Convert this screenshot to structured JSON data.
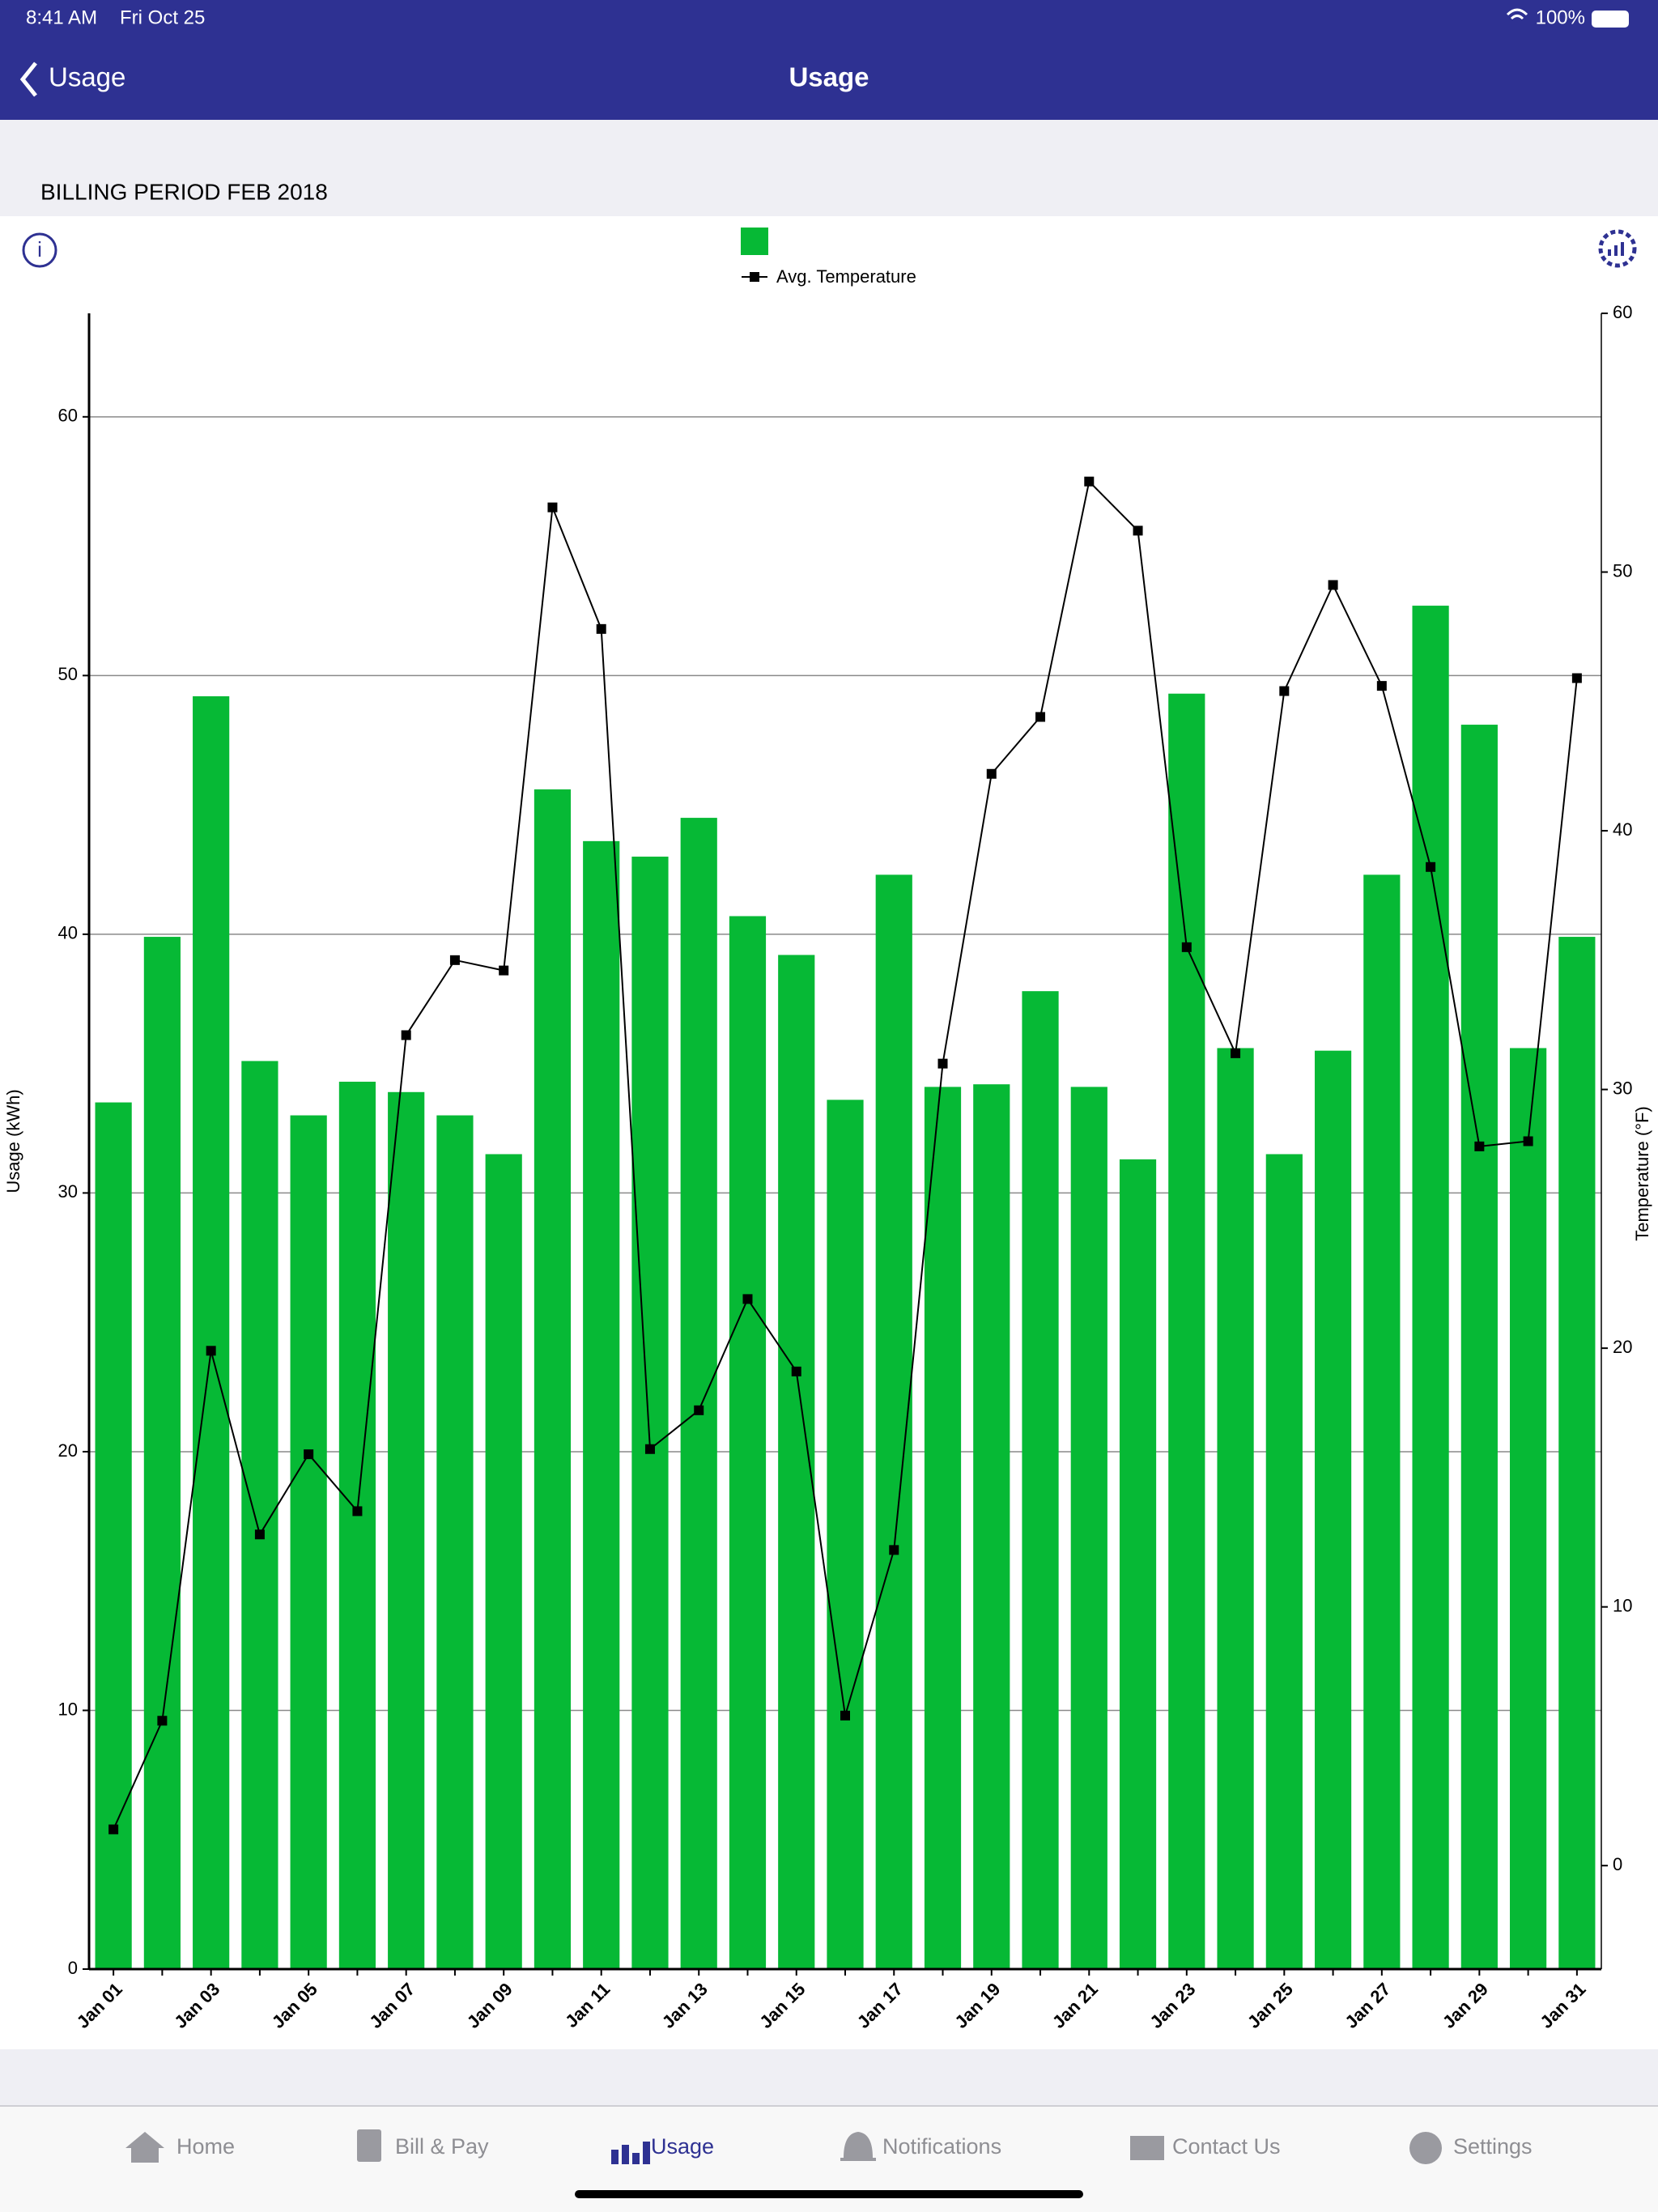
{
  "status_bar": {
    "time": "8:41 AM",
    "date": "Fri Oct 25",
    "battery": "100%"
  },
  "nav": {
    "back": "Usage",
    "title": "Usage"
  },
  "section_title": "BILLING PERIOD FEB 2018",
  "tabs": [
    "Home",
    "Bill & Pay",
    "Usage",
    "Notifications",
    "Contact Us",
    "Settings"
  ],
  "chart_data": {
    "type": "bar",
    "y_label": "Usage (kWh)",
    "y2_label": "Temperature (°F)",
    "categories": [
      "Jan 01",
      null,
      "Jan 03",
      null,
      "Jan 05",
      null,
      "Jan 07",
      null,
      "Jan 09",
      null,
      "Jan 11",
      null,
      "Jan 13",
      null,
      "Jan 15",
      null,
      "Jan 17",
      null,
      "Jan 19",
      null,
      "Jan 21",
      null,
      "Jan 23",
      null,
      "Jan 25",
      null,
      "Jan 27",
      null,
      "Jan 29",
      null,
      "Jan 31"
    ],
    "series": [
      {
        "type": "bar",
        "color": "#06b935",
        "values": [
          33.5,
          39.9,
          49.2,
          35.1,
          33.0,
          34.3,
          33.9,
          33.0,
          31.5,
          45.6,
          43.6,
          43.0,
          44.5,
          40.7,
          39.2,
          33.6,
          42.3,
          34.1,
          34.2,
          37.8,
          34.1,
          31.3,
          49.3,
          35.6,
          31.5,
          35.5,
          42.3,
          52.7,
          48.1,
          35.6,
          39.9
        ]
      },
      {
        "type": "line",
        "name": "Avg. Temperature",
        "color": "#000000",
        "axis": "y2",
        "values": [
          1.4,
          5.6,
          19.9,
          12.8,
          15.9,
          13.7,
          32.1,
          35.0,
          34.6,
          52.5,
          47.8,
          16.1,
          17.6,
          21.9,
          19.1,
          5.8,
          12.2,
          31.0,
          42.2,
          44.4,
          53.5,
          51.6,
          35.5,
          31.4,
          45.4,
          49.5,
          45.6,
          38.6,
          27.8,
          28.0,
          45.9
        ]
      }
    ],
    "ylim": [
      0,
      64
    ],
    "yticks": [
      0,
      10,
      20,
      30,
      40,
      50,
      60
    ],
    "y2lim": [
      -4,
      60
    ],
    "y2ticks": [
      0,
      10,
      20,
      30,
      40,
      50,
      60
    ],
    "grid": true
  }
}
